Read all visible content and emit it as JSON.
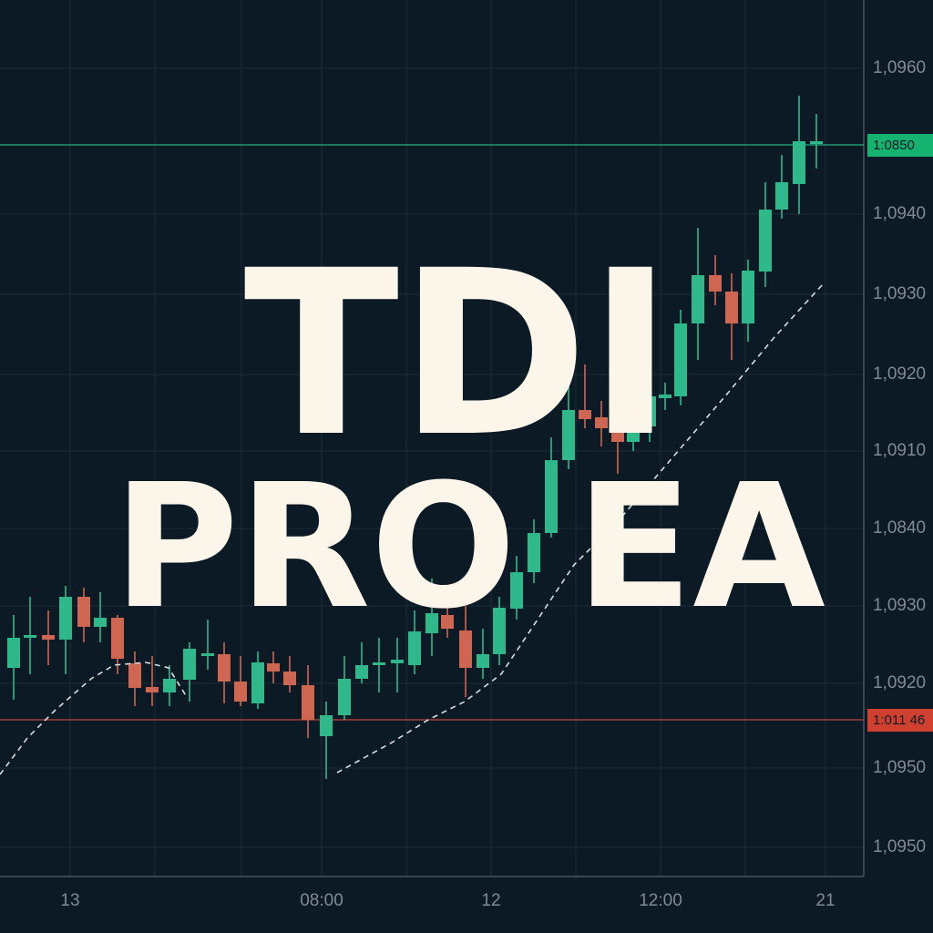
{
  "title": {
    "line1": "TDI",
    "line2": "PRO EA"
  },
  "price_axis": {
    "labels": [
      "1,0960",
      "1,0940",
      "1,0930",
      "1,0920",
      "1,0910",
      "1,0840",
      "1,0930",
      "1,0920",
      "1,0950",
      "1,0950"
    ]
  },
  "time_axis": {
    "labels": [
      "13",
      "08:00",
      "12",
      "12:00",
      "21"
    ]
  },
  "price_tags": {
    "last": "1:0850",
    "stop": "1:011 46"
  }
}
